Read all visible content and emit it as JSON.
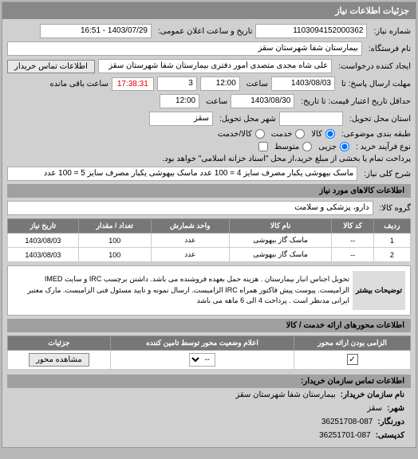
{
  "header": {
    "title": "جزئیات اطلاعات نیاز"
  },
  "form": {
    "request_no_label": "شماره نیاز:",
    "request_no": "1103094152000362",
    "announce_label": "تاریخ و ساعت اعلان عمومی:",
    "announce_value": "1403/07/29 - 16:51",
    "buyer_label": "نام فرستگاه:",
    "buyer_value": "بیمارستان شفا شهرستان سقز",
    "requester_label": "ایجاد کننده درخواست:",
    "requester_value": "علی شاه مجدی متصدی امور دفتری بیمارستان شفا شهرستان سقز",
    "contact_btn": "اطلاعات تماس خریدار",
    "deadline_label": "مهلت ارسال پاسخ: تا",
    "deadline_date": "1403/08/03",
    "time_label": "ساعت",
    "deadline_time": "12:00",
    "remaining_days": "3",
    "countdown": "17:38:31",
    "remaining_suffix": "ساعت باقی مانده",
    "min_valid_label": "حداقل تاریخ اعتبار قیمت: تا تاریخ:",
    "min_valid_date": "1403/08/30",
    "min_valid_time": "12:00",
    "delivery_province_label": "استان محل تحویل:",
    "delivery_city_label": "شهر محل تحویل:",
    "delivery_city": "سقز",
    "demand_type_label": "طبقه بندی موضوعی:",
    "demand_opt1": "کالا",
    "demand_opt2": "خدمت",
    "demand_opt3": "کالا/خدمت",
    "buy_type_label": "نوع فرآیند خرید :",
    "buy_opt1": "جزیی",
    "buy_opt2": "متوسط",
    "buy_note": "پرداخت تمام یا بخشی از مبلغ خرید،از محل \"اسناد خزانه اسلامی\" خواهد بود.",
    "title_label": "شرح کلی نیاز:",
    "title_text": "ماسک بیهوشی یکبار مصرف سایز 4 = 100 عدد ماسک بیهوشی یکبار مصرف سایز 5 = 100 عدد"
  },
  "goods": {
    "header": "اطلاعات کالاهای مورد نیاز",
    "group_label": "گروه کالا:",
    "group_value": "دارو، پزشکی و سلامت",
    "cols": {
      "row": "ردیف",
      "code": "کد کالا",
      "name": "نام کالا",
      "unit": "واحد شمارش",
      "qty": "تعداد / مقدار",
      "date": "تاریخ نیاز"
    },
    "rows": [
      {
        "n": "1",
        "code": "--",
        "name": "ماسک گاز بیهوشی",
        "unit": "عدد",
        "qty": "100",
        "date": "1403/08/03"
      },
      {
        "n": "2",
        "code": "--",
        "name": "ماسک گاز بیهوشی",
        "unit": "عدد",
        "qty": "100",
        "date": "1403/08/03"
      }
    ],
    "desc_label": "توضیحات بیشتر",
    "desc_text": "تحویل اجناس انبار بیمارستان . هزینه حمل بعهده فروشنده می باشد. داشتن برچسب IRC و سایت IMED الزامیست. پیوست پیش فاکتور همراه IRC الزامیست. ارسال نمونه و تایید مسئول فنی الزامیست. مارک معتبر ایرانی مدنظر است . پرداخت 4 الی 6 ماهه می باشد"
  },
  "axis": {
    "header": "اطلاعات محورهای ارائه خدمت / کالا",
    "cols": {
      "mandatory": "الزامی بودن ارائه محور",
      "status": "اعلام وضعیت محور توسط تامین کننده",
      "details": "جزئیات"
    },
    "view_btn": "مشاهده محور",
    "dash": "--"
  },
  "contact": {
    "header": "اطلاعات تماس سازمان خریدار:",
    "org_label": "نام سازمان خریدار:",
    "org_value": "بیمارستان شفا شهرستان سقز",
    "city_label": "شهر:",
    "city_value": "سقز",
    "fax_label": "دورنگار:",
    "fax_value": "36251708-087",
    "postcode_label": "کدپستی:",
    "postcode_value": "36251701-087"
  }
}
